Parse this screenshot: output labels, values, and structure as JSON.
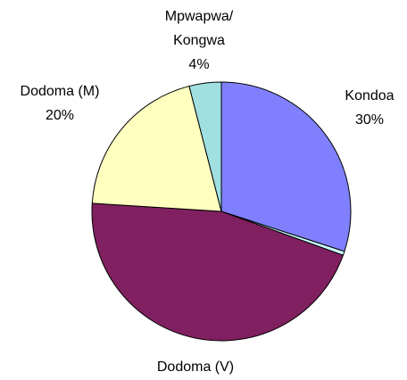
{
  "chart_data": {
    "type": "pie",
    "categories": [
      "Kondoa",
      null,
      "Dodoma (V)",
      "Dodoma (M)",
      "Mpwapwa/\nKongwa"
    ],
    "values": [
      30,
      0.5,
      45.5,
      20,
      4
    ],
    "value_labels": [
      "30%",
      null,
      null,
      "20%",
      "4%"
    ],
    "colors": [
      "#8080ff",
      "#ccffff",
      "#802060",
      "#ffffc0",
      "#a0e0e0"
    ]
  }
}
